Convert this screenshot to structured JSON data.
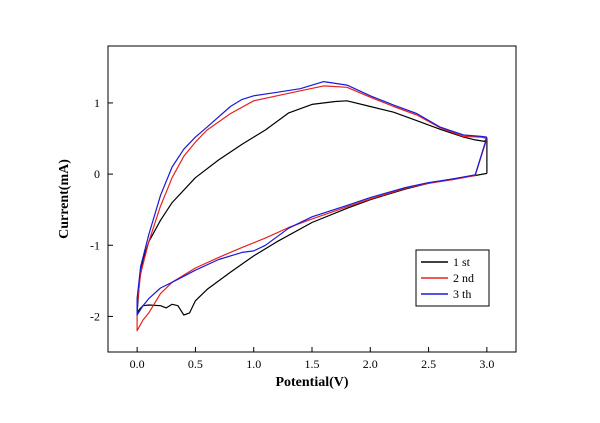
{
  "chart_data": {
    "type": "line",
    "title": "",
    "xlabel": "Potential(V)",
    "ylabel": "Current(mA)",
    "xlim": [
      -0.25,
      3.25
    ],
    "ylim": [
      -2.5,
      1.8
    ],
    "x_ticks": [
      0.0,
      0.5,
      1.0,
      1.5,
      2.0,
      2.5,
      3.0
    ],
    "x_tick_labels": [
      "0.0",
      "0.5",
      "1.0",
      "1.5",
      "2.0",
      "2.5",
      "3.0"
    ],
    "y_ticks": [
      -2,
      -1,
      0,
      1
    ],
    "y_tick_labels": [
      "-2",
      "-1",
      "0",
      "1"
    ],
    "grid": false,
    "legend_position": "bottom-right",
    "series": [
      {
        "name": "1 st",
        "color": "#000000",
        "points": [
          [
            3.0,
            0.01
          ],
          [
            2.9,
            -0.02
          ],
          [
            2.7,
            -0.07
          ],
          [
            2.5,
            -0.13
          ],
          [
            2.3,
            -0.21
          ],
          [
            2.0,
            -0.36
          ],
          [
            1.8,
            -0.48
          ],
          [
            1.5,
            -0.68
          ],
          [
            1.2,
            -0.95
          ],
          [
            1.0,
            -1.15
          ],
          [
            0.8,
            -1.38
          ],
          [
            0.6,
            -1.62
          ],
          [
            0.5,
            -1.78
          ],
          [
            0.45,
            -1.95
          ],
          [
            0.4,
            -1.98
          ],
          [
            0.35,
            -1.85
          ],
          [
            0.3,
            -1.83
          ],
          [
            0.25,
            -1.88
          ],
          [
            0.2,
            -1.85
          ],
          [
            0.1,
            -1.84
          ],
          [
            0.05,
            -1.85
          ],
          [
            0.02,
            -1.9
          ],
          [
            0.0,
            -1.95
          ],
          [
            0.02,
            -1.5
          ],
          [
            0.05,
            -1.2
          ],
          [
            0.1,
            -0.95
          ],
          [
            0.2,
            -0.65
          ],
          [
            0.3,
            -0.4
          ],
          [
            0.5,
            -0.05
          ],
          [
            0.7,
            0.2
          ],
          [
            0.9,
            0.42
          ],
          [
            1.1,
            0.62
          ],
          [
            1.3,
            0.86
          ],
          [
            1.5,
            0.98
          ],
          [
            1.7,
            1.02
          ],
          [
            1.8,
            1.03
          ],
          [
            2.0,
            0.95
          ],
          [
            2.2,
            0.87
          ],
          [
            2.4,
            0.75
          ],
          [
            2.6,
            0.63
          ],
          [
            2.8,
            0.52
          ],
          [
            2.9,
            0.48
          ],
          [
            2.98,
            0.46
          ],
          [
            3.0,
            0.5
          ],
          [
            3.0,
            0.01
          ]
        ]
      },
      {
        "name": "2 nd",
        "color": "#e8211f",
        "points": [
          [
            3.0,
            0.5
          ],
          [
            2.9,
            -0.02
          ],
          [
            2.7,
            -0.08
          ],
          [
            2.5,
            -0.13
          ],
          [
            2.3,
            -0.2
          ],
          [
            2.0,
            -0.35
          ],
          [
            1.8,
            -0.46
          ],
          [
            1.5,
            -0.63
          ],
          [
            1.3,
            -0.75
          ],
          [
            1.1,
            -0.9
          ],
          [
            0.9,
            -1.03
          ],
          [
            0.7,
            -1.17
          ],
          [
            0.5,
            -1.32
          ],
          [
            0.3,
            -1.52
          ],
          [
            0.2,
            -1.68
          ],
          [
            0.1,
            -1.95
          ],
          [
            0.05,
            -2.05
          ],
          [
            0.0,
            -2.2
          ],
          [
            0.0,
            -1.85
          ],
          [
            0.03,
            -1.4
          ],
          [
            0.1,
            -0.95
          ],
          [
            0.2,
            -0.45
          ],
          [
            0.3,
            -0.05
          ],
          [
            0.4,
            0.25
          ],
          [
            0.5,
            0.45
          ],
          [
            0.6,
            0.62
          ],
          [
            0.8,
            0.85
          ],
          [
            1.0,
            1.03
          ],
          [
            1.2,
            1.1
          ],
          [
            1.4,
            1.17
          ],
          [
            1.6,
            1.24
          ],
          [
            1.8,
            1.22
          ],
          [
            2.0,
            1.08
          ],
          [
            2.2,
            0.95
          ],
          [
            2.4,
            0.83
          ],
          [
            2.6,
            0.65
          ],
          [
            2.8,
            0.53
          ],
          [
            2.95,
            0.52
          ],
          [
            3.0,
            0.5
          ]
        ]
      },
      {
        "name": "3 th",
        "color": "#1a1adb",
        "points": [
          [
            3.0,
            0.52
          ],
          [
            2.9,
            -0.01
          ],
          [
            2.7,
            -0.07
          ],
          [
            2.5,
            -0.12
          ],
          [
            2.3,
            -0.19
          ],
          [
            2.0,
            -0.33
          ],
          [
            1.8,
            -0.44
          ],
          [
            1.5,
            -0.6
          ],
          [
            1.3,
            -0.76
          ],
          [
            1.1,
            -1.0
          ],
          [
            1.0,
            -1.08
          ],
          [
            0.9,
            -1.1
          ],
          [
            0.7,
            -1.2
          ],
          [
            0.5,
            -1.35
          ],
          [
            0.3,
            -1.52
          ],
          [
            0.2,
            -1.6
          ],
          [
            0.1,
            -1.75
          ],
          [
            0.05,
            -1.85
          ],
          [
            0.0,
            -1.98
          ],
          [
            0.0,
            -1.75
          ],
          [
            0.03,
            -1.3
          ],
          [
            0.1,
            -0.85
          ],
          [
            0.2,
            -0.3
          ],
          [
            0.3,
            0.1
          ],
          [
            0.4,
            0.35
          ],
          [
            0.5,
            0.52
          ],
          [
            0.6,
            0.66
          ],
          [
            0.8,
            0.95
          ],
          [
            0.9,
            1.05
          ],
          [
            1.0,
            1.1
          ],
          [
            1.2,
            1.15
          ],
          [
            1.4,
            1.2
          ],
          [
            1.6,
            1.3
          ],
          [
            1.8,
            1.25
          ],
          [
            2.0,
            1.1
          ],
          [
            2.2,
            0.97
          ],
          [
            2.4,
            0.85
          ],
          [
            2.6,
            0.66
          ],
          [
            2.8,
            0.55
          ],
          [
            2.95,
            0.53
          ],
          [
            3.0,
            0.52
          ]
        ]
      }
    ]
  }
}
